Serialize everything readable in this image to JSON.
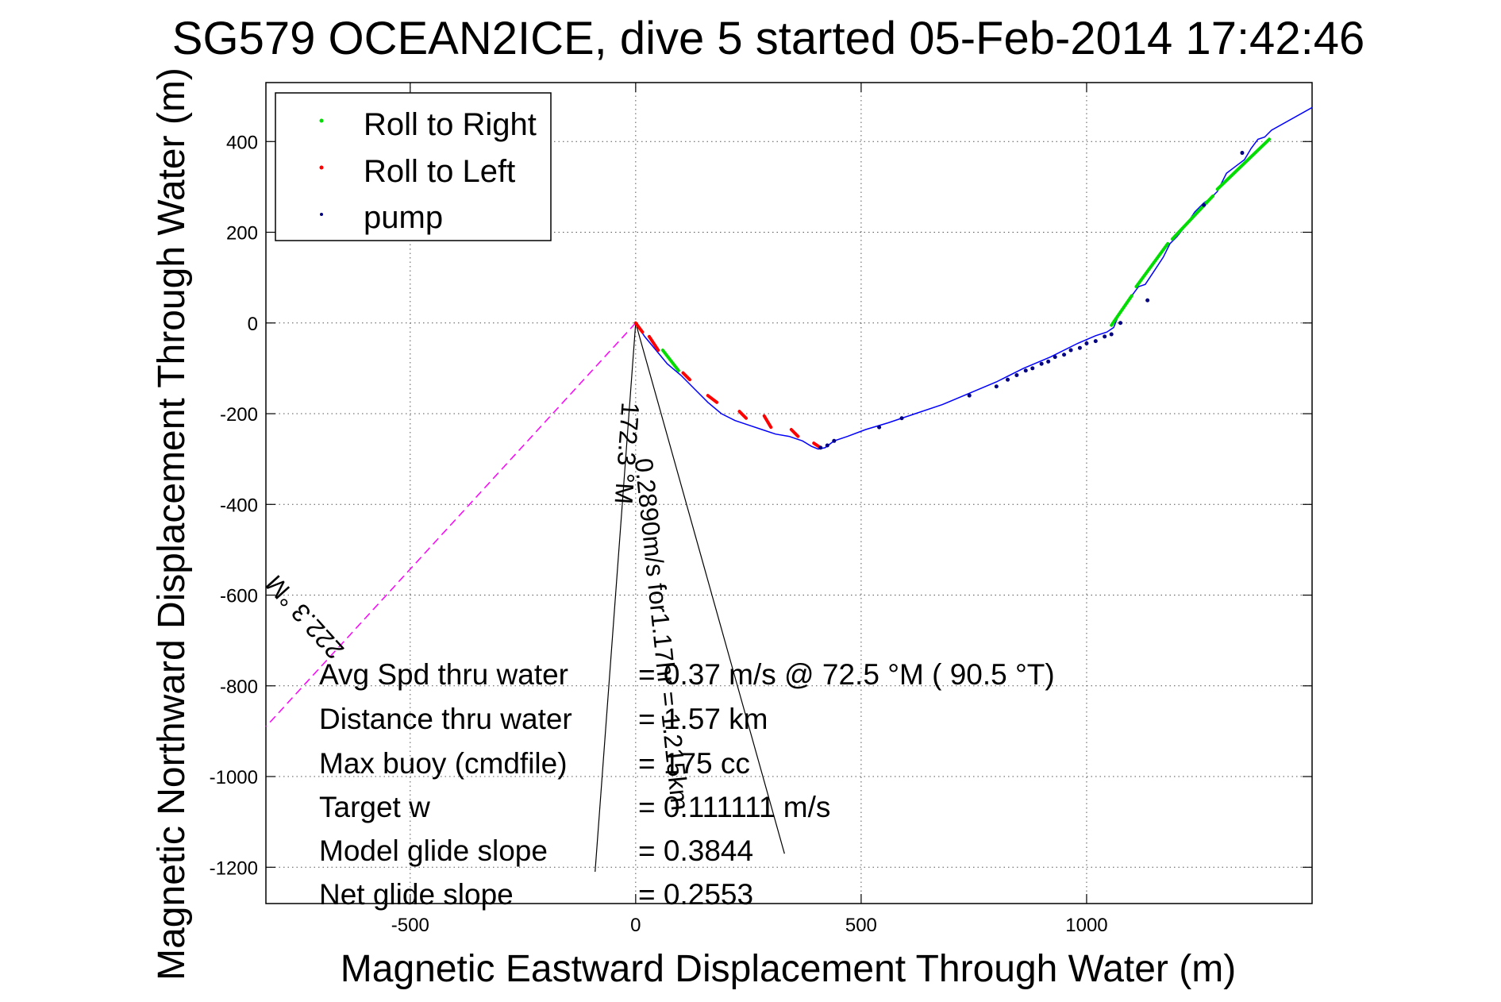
{
  "chart_data": {
    "type": "line",
    "title": "SG579 OCEAN2ICE, dive 5 started 05-Feb-2014 17:42:46",
    "xlabel": "Magnetic Eastward Displacement Through Water (m)",
    "ylabel": "Magnetic Northward Displacement Through Water (m)",
    "xlim": [
      -820,
      1500
    ],
    "ylim": [
      -1280,
      530
    ],
    "xticks": [
      -500,
      0,
      500,
      1000
    ],
    "yticks": [
      400,
      200,
      0,
      -200,
      -400,
      -600,
      -800,
      -1000,
      -1200
    ],
    "xtick_labels": [
      "-500",
      "0",
      "500",
      "1000"
    ],
    "ytick_labels": [
      "400",
      "200",
      "0",
      "-200",
      "-400",
      "-600",
      "-800",
      "-1000",
      "-1200"
    ],
    "grid": true,
    "legend_position": "top-left",
    "legend": [
      {
        "label": "Roll to Right",
        "color": "#00dd00"
      },
      {
        "label": "Roll to Left",
        "color": "#ff0000"
      },
      {
        "label": "pump",
        "color": "#000080"
      }
    ],
    "series": [
      {
        "name": "track",
        "color": "#0000ff",
        "x": [
          0,
          20,
          45,
          70,
          100,
          130,
          160,
          190,
          220,
          250,
          280,
          310,
          340,
          370,
          390,
          405,
          420,
          440,
          470,
          510,
          560,
          620,
          680,
          740,
          800,
          860,
          920,
          980,
          1020,
          1045,
          1060,
          1070,
          1085,
          1100,
          1115,
          1130,
          1150,
          1170,
          1185,
          1200,
          1220,
          1240,
          1260,
          1275,
          1290,
          1310,
          1330,
          1350,
          1365,
          1380,
          1395,
          1410,
          1500
        ],
        "y": [
          0,
          -30,
          -60,
          -90,
          -115,
          -145,
          -175,
          -200,
          -215,
          -225,
          -235,
          -245,
          -250,
          -260,
          -272,
          -278,
          -275,
          -260,
          -250,
          -235,
          -220,
          -200,
          -180,
          -155,
          -130,
          -100,
          -75,
          -45,
          -28,
          -20,
          -10,
          15,
          40,
          60,
          80,
          85,
          115,
          145,
          175,
          190,
          215,
          245,
          265,
          275,
          290,
          330,
          345,
          360,
          385,
          405,
          410,
          425,
          475
        ]
      }
    ],
    "roll_right_segments": [
      {
        "x": [
          60,
          95
        ],
        "y": [
          -60,
          -105
        ]
      },
      {
        "x": [
          1055,
          1100
        ],
        "y": [
          -5,
          60
        ]
      },
      {
        "x": [
          1110,
          1180
        ],
        "y": [
          80,
          175
        ]
      },
      {
        "x": [
          1190,
          1280
        ],
        "y": [
          185,
          280
        ]
      },
      {
        "x": [
          1290,
          1405
        ],
        "y": [
          295,
          405
        ]
      }
    ],
    "roll_left_segments": [
      {
        "x": [
          0,
          15
        ],
        "y": [
          0,
          -20
        ]
      },
      {
        "x": [
          30,
          50
        ],
        "y": [
          -30,
          -60
        ]
      },
      {
        "x": [
          105,
          120
        ],
        "y": [
          -110,
          -125
        ]
      },
      {
        "x": [
          160,
          180
        ],
        "y": [
          -160,
          -175
        ]
      },
      {
        "x": [
          230,
          245
        ],
        "y": [
          -195,
          -210
        ]
      },
      {
        "x": [
          285,
          300
        ],
        "y": [
          -205,
          -230
        ]
      },
      {
        "x": [
          345,
          360
        ],
        "y": [
          -235,
          -250
        ]
      },
      {
        "x": [
          395,
          410
        ],
        "y": [
          -265,
          -275
        ]
      }
    ],
    "pump_points": {
      "x": [
        410,
        425,
        440,
        540,
        590,
        740,
        800,
        825,
        845,
        865,
        880,
        900,
        915,
        930,
        950,
        965,
        985,
        1000,
        1020,
        1040,
        1055,
        1075,
        1135,
        1260,
        1345
      ],
      "y": [
        -275,
        -270,
        -260,
        -230,
        -210,
        -160,
        -140,
        -125,
        -115,
        -105,
        -100,
        -90,
        -85,
        -75,
        -70,
        -60,
        -55,
        -45,
        -40,
        -30,
        -25,
        0,
        50,
        260,
        375
      ]
    },
    "heading_line": {
      "color": "#ff00ff",
      "x": [
        0,
        -820
      ],
      "y": [
        0,
        -890
      ],
      "label": "222.3 °M"
    },
    "current_lines": [
      {
        "x": [
          0,
          -90
        ],
        "y": [
          0,
          -1210
        ],
        "label": "172.3 °M"
      },
      {
        "x": [
          0,
          330
        ],
        "y": [
          0,
          -1170
        ],
        "label": "0.2890m/s for1.17hr = 1.215km"
      }
    ],
    "stats": [
      {
        "label": "Avg Spd thru water",
        "value": "= 0.37 m/s @  72.5 °M ( 90.5 °T)"
      },
      {
        "label": "Distance thru water",
        "value": "= 1.57 km"
      },
      {
        "label": "Max buoy (cmdfile)",
        "value": "= 175 cc"
      },
      {
        "label": "Target w",
        "value": "= 0.111111 m/s"
      },
      {
        "label": "Model glide slope",
        "value": "= 0.3844"
      },
      {
        "label": "Net glide slope",
        "value": "= 0.2553"
      }
    ]
  }
}
